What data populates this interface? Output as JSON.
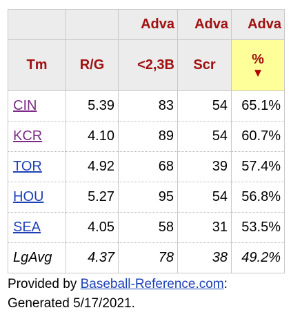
{
  "table": {
    "over_headers": [
      "",
      "",
      "Adva",
      "Adva",
      "Adva"
    ],
    "headers": {
      "team": "Tm",
      "rpg": "R/G",
      "adv_lt": "<2,3B",
      "adv_scr": "Scr",
      "adv_pct": "%",
      "sort_arrow": "▼"
    },
    "rows": [
      {
        "team": "CIN",
        "rpg": "5.39",
        "adv_lt": "83",
        "adv_scr": "54",
        "adv_pct": "65.1%"
      },
      {
        "team": "KCR",
        "rpg": "4.10",
        "adv_lt": "89",
        "adv_scr": "54",
        "adv_pct": "60.7%"
      },
      {
        "team": "TOR",
        "rpg": "4.92",
        "adv_lt": "68",
        "adv_scr": "39",
        "adv_pct": "57.4%"
      },
      {
        "team": "HOU",
        "rpg": "5.27",
        "adv_lt": "95",
        "adv_scr": "54",
        "adv_pct": "56.8%"
      },
      {
        "team": "SEA",
        "rpg": "4.05",
        "adv_lt": "58",
        "adv_scr": "31",
        "adv_pct": "53.5%"
      }
    ],
    "league_avg": {
      "team": "LgAvg",
      "rpg": "4.37",
      "adv_lt": "78",
      "adv_scr": "38",
      "adv_pct": "49.2%"
    }
  },
  "credit": {
    "prefix": "Provided by ",
    "link": "Baseball-Reference.com",
    "suffix": ":",
    "generated": "Generated 5/17/2021."
  },
  "colors": {
    "header_text": "#a01010",
    "header_bg": "#ececec",
    "sorted_bg": "#ffff99",
    "link": "#1c3fb5",
    "visited_link": "#7b2d86"
  }
}
